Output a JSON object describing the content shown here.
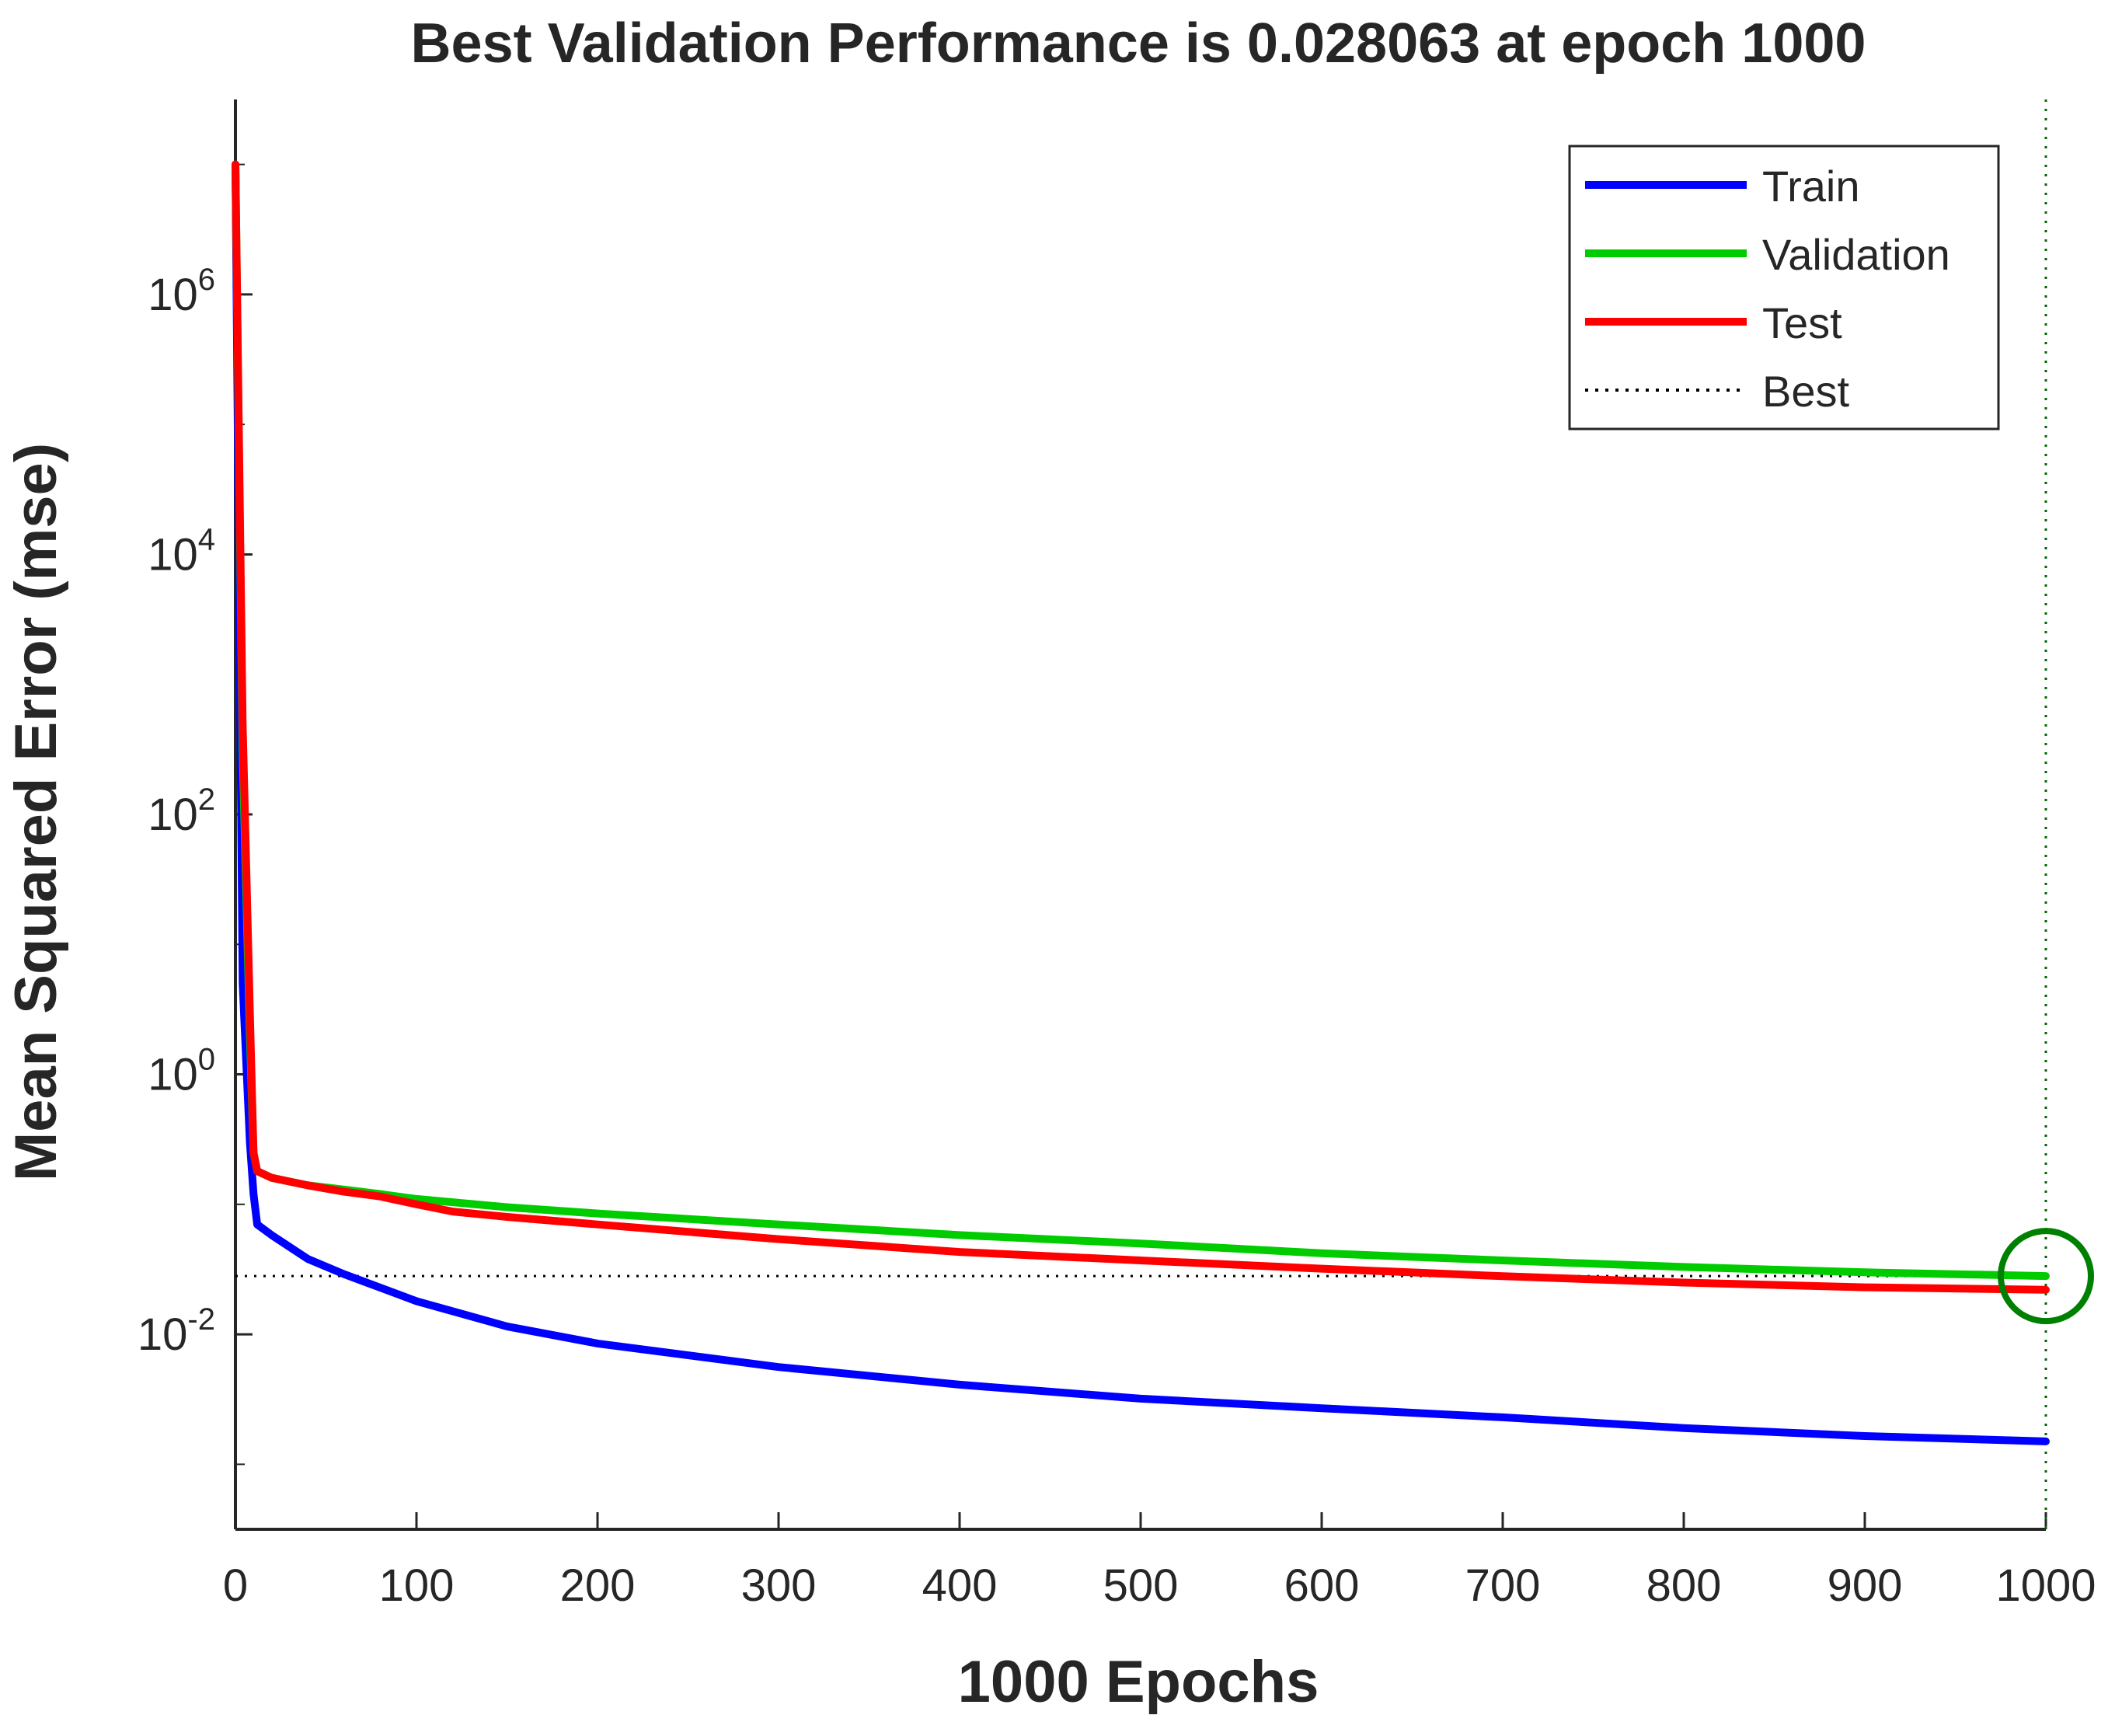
{
  "chart_data": {
    "type": "line",
    "title": "Best Validation Performance is 0.028063 at epoch 1000",
    "xlabel": "1000 Epochs",
    "ylabel": "Mean Squared Error  (mse)",
    "xlim": [
      0,
      1000
    ],
    "ylim_log10": [
      -3.5,
      7.5
    ],
    "yscale": "log",
    "grid": false,
    "legend_position": "top-right",
    "x_ticks": [
      "0",
      "100",
      "200",
      "300",
      "400",
      "500",
      "600",
      "700",
      "800",
      "900",
      "1000"
    ],
    "y_ticks": [
      {
        "base": "10",
        "exp": "6",
        "value": 1000000
      },
      {
        "base": "10",
        "exp": "4",
        "value": 10000
      },
      {
        "base": "10",
        "exp": "2",
        "value": 100
      },
      {
        "base": "10",
        "exp": "0",
        "value": 1
      },
      {
        "base": "10",
        "exp": "-2",
        "value": 0.01
      }
    ],
    "series": [
      {
        "name": "Train",
        "color": "#0000ff",
        "x": [
          0,
          4,
          8,
          10,
          12,
          20,
          40,
          60,
          100,
          150,
          200,
          300,
          400,
          500,
          600,
          700,
          800,
          900,
          1000
        ],
        "y": [
          10000000,
          5,
          0.3,
          0.12,
          0.07,
          0.058,
          0.038,
          0.029,
          0.018,
          0.0115,
          0.0085,
          0.0056,
          0.0041,
          0.0032,
          0.0027,
          0.0023,
          0.0019,
          0.00165,
          0.0015
        ]
      },
      {
        "name": "Validation",
        "color": "#00cc00",
        "x": [
          0,
          4,
          8,
          10,
          12,
          20,
          40,
          60,
          80,
          100,
          150,
          200,
          300,
          400,
          500,
          600,
          700,
          800,
          900,
          1000
        ],
        "y": [
          10000000,
          300,
          2,
          0.25,
          0.18,
          0.16,
          0.14,
          0.13,
          0.12,
          0.11,
          0.095,
          0.085,
          0.07,
          0.058,
          0.05,
          0.042,
          0.037,
          0.033,
          0.03,
          0.028063
        ]
      },
      {
        "name": "Test",
        "color": "#ff0000",
        "x": [
          0,
          4,
          8,
          10,
          12,
          20,
          40,
          60,
          80,
          100,
          120,
          150,
          200,
          300,
          400,
          500,
          600,
          700,
          800,
          900,
          1000
        ],
        "y": [
          10000000,
          500,
          3,
          0.25,
          0.18,
          0.16,
          0.14,
          0.125,
          0.115,
          0.1,
          0.088,
          0.08,
          0.07,
          0.054,
          0.043,
          0.037,
          0.032,
          0.028,
          0.025,
          0.023,
          0.022
        ]
      }
    ],
    "best_line": {
      "name": "Best",
      "value": 0.028063,
      "epoch": 1000,
      "color": "#000000",
      "marker_color": "#008000"
    }
  }
}
